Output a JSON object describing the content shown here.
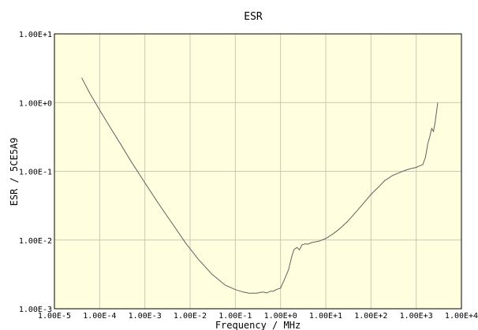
{
  "chart_data": {
    "type": "line",
    "title": "ESR",
    "xlabel": "Frequency / MHz",
    "ylabel": "ESR / 5CE5A9",
    "x_scale": "log",
    "y_scale": "log",
    "xlim": [
      1e-05,
      10000
    ],
    "ylim": [
      0.001,
      10
    ],
    "x_ticks": [
      1e-05,
      0.0001,
      0.001,
      0.01,
      0.1,
      1,
      10,
      100,
      1000,
      10000
    ],
    "x_tick_labels": [
      "1.00E-5",
      "1.00E-4",
      "1.00E-3",
      "1.00E-2",
      "1.00E-1",
      "1.00E+0",
      "1.00E+1",
      "1.00E+2",
      "1.00E+3",
      "1.00E+4"
    ],
    "y_ticks": [
      10,
      1,
      0.1,
      0.01,
      0.001
    ],
    "y_tick_labels": [
      "1.00E+1",
      "1.00E+0",
      "1.00E-1",
      "1.00E-2",
      "1.00E-3"
    ],
    "grid": true,
    "plot_background": "#ffffe0",
    "grid_color": "#c8c8b4",
    "line_color": "#606060",
    "series": [
      {
        "x": [
          4e-05,
          6e-05,
          0.0001,
          0.00017,
          0.0003,
          0.0005,
          0.001,
          0.002,
          0.004,
          0.008,
          0.015,
          0.03,
          0.06,
          0.1,
          0.15,
          0.2,
          0.3,
          0.4,
          0.5,
          0.6,
          0.7,
          0.8,
          1.0,
          1.2,
          1.5,
          1.8,
          2.0,
          2.3,
          2.6,
          3.0,
          3.5,
          4.0,
          5.0,
          7.0,
          10,
          15,
          20,
          30,
          50,
          70,
          100,
          150,
          200,
          300,
          500,
          700,
          1000,
          1200,
          1400,
          1600,
          1800,
          2000,
          2200,
          2400,
          2600,
          2800,
          3000
        ],
        "y": [
          2.3,
          1.38,
          0.78,
          0.44,
          0.24,
          0.138,
          0.068,
          0.034,
          0.0175,
          0.009,
          0.0053,
          0.0032,
          0.0022,
          0.0019,
          0.00175,
          0.00168,
          0.00168,
          0.00175,
          0.0017,
          0.0018,
          0.0018,
          0.0019,
          0.002,
          0.0026,
          0.0037,
          0.006,
          0.0073,
          0.0078,
          0.0072,
          0.0085,
          0.0088,
          0.0087,
          0.0092,
          0.0096,
          0.0105,
          0.0125,
          0.0145,
          0.0185,
          0.027,
          0.035,
          0.046,
          0.06,
          0.073,
          0.087,
          0.1,
          0.108,
          0.114,
          0.12,
          0.125,
          0.16,
          0.25,
          0.32,
          0.42,
          0.38,
          0.5,
          0.72,
          1.0
        ]
      }
    ]
  }
}
